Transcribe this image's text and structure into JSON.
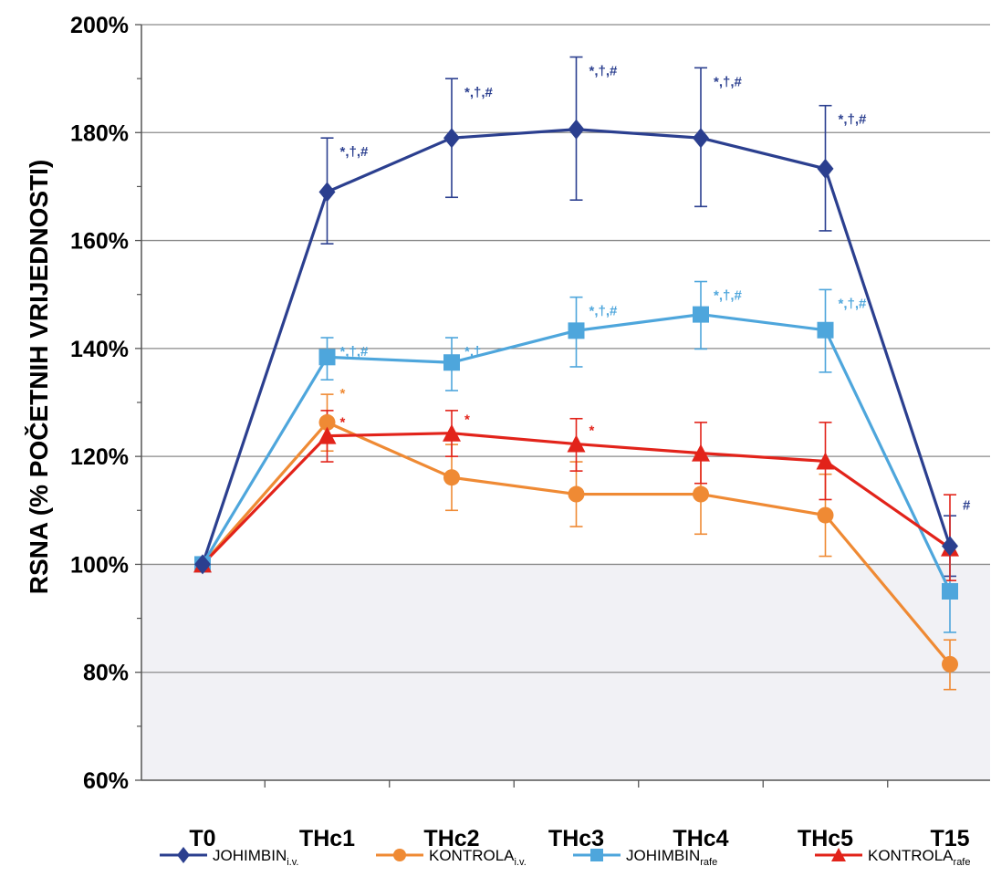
{
  "chart_data": {
    "type": "line",
    "title": "",
    "xlabel": "",
    "ylabel": "RSNA  (% POČETNIH VRIJEDNOSTI)",
    "categories": [
      "T0",
      "THc1",
      "THc2",
      "THc3",
      "THc4",
      "THc5",
      "T15"
    ],
    "ylim": [
      60,
      200
    ],
    "yticks": [
      60,
      80,
      100,
      120,
      140,
      160,
      180,
      200
    ],
    "ytick_labels": [
      "60%",
      "80%",
      "100%",
      "120%",
      "140%",
      "160%",
      "180%",
      "200%"
    ],
    "grid": "horizontal",
    "shaded_region": [
      60,
      100
    ],
    "legend_position": "bottom",
    "series": [
      {
        "name": "JOHIMBIN",
        "subscript": "i.v.",
        "color": "#2b3f8f",
        "marker": "diamond",
        "values": [
          100,
          169,
          179,
          180.6,
          179,
          173.3,
          103.4
        ],
        "err_upper": [
          100,
          179,
          190,
          194,
          192,
          185,
          109
        ],
        "err_lower": [
          100,
          159.4,
          168,
          167.5,
          166.3,
          161.8,
          97.8
        ],
        "annotations": [
          "",
          "*,†,#",
          "*,†,#",
          "*,†,#",
          "*,†,#",
          "*,†,#",
          "#"
        ]
      },
      {
        "name": "KONTROLA",
        "subscript": "i.v.",
        "color": "#ef8a34",
        "marker": "circle",
        "values": [
          100,
          126.3,
          116.1,
          113,
          113,
          109.1,
          81.5
        ],
        "err_upper": [
          100,
          131.5,
          122.2,
          119,
          120.4,
          116.7,
          86
        ],
        "err_lower": [
          100,
          121,
          110,
          107,
          105.6,
          101.5,
          76.8
        ],
        "annotations": [
          "",
          "*",
          "",
          "",
          "",
          "",
          ""
        ]
      },
      {
        "name": "JOHIMBIN",
        "subscript": "rafe",
        "color": "#4ea6dc",
        "marker": "square",
        "values": [
          100,
          138.4,
          137.4,
          143.3,
          146.3,
          143.4,
          95
        ],
        "err_upper": [
          100,
          142,
          142,
          149.5,
          152.4,
          150.9,
          102.4
        ],
        "err_lower": [
          100,
          134.2,
          132.2,
          136.6,
          139.9,
          135.6,
          87.4
        ],
        "annotations": [
          "",
          "*,†,#",
          "*,†",
          "*,†,#",
          "*,†,#",
          "*,†,#",
          ""
        ]
      },
      {
        "name": "KONTROLA",
        "subscript": "rafe",
        "color": "#e2231a",
        "marker": "triangle",
        "values": [
          100,
          123.8,
          124.3,
          122.3,
          120.6,
          119.1,
          103
        ],
        "err_upper": [
          100,
          128.5,
          128.5,
          127,
          126.3,
          126.3,
          112.9
        ],
        "err_lower": [
          100,
          119,
          120,
          117.3,
          115,
          112,
          97
        ],
        "annotations": [
          "",
          "*",
          "*",
          "*",
          "",
          "",
          ""
        ]
      }
    ]
  }
}
